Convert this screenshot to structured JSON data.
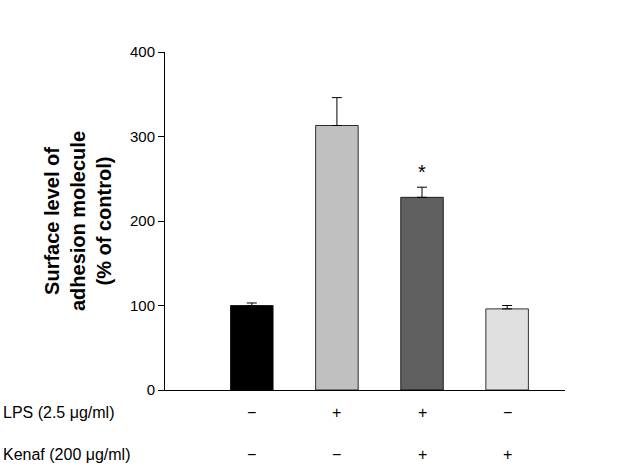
{
  "chart_data": {
    "type": "bar",
    "categories": [
      null,
      null,
      null,
      null
    ],
    "values": [
      100,
      313,
      228,
      96
    ],
    "errors": [
      3,
      33,
      12,
      4
    ],
    "colors": [
      "#000000",
      "#c0c0c0",
      "#5f5f5f",
      "#e0e0e0"
    ],
    "y_label": [
      "Surface level of",
      "adhesion molecule",
      "(% of control)"
    ],
    "ylim": [
      0,
      400
    ],
    "yticks": [
      0,
      100,
      200,
      300,
      400
    ],
    "grid": false,
    "tick_labels": "y",
    "annotations": [
      {
        "text": "*",
        "x": 2
      }
    ],
    "condition_rows": [
      {
        "label": "LPS (2.5 μg/ml)",
        "values": [
          "−",
          "+",
          "+",
          "−"
        ]
      },
      {
        "label": "Kenaf (200 μg/ml)",
        "values": [
          "−",
          "−",
          "+",
          "+"
        ]
      }
    ]
  }
}
